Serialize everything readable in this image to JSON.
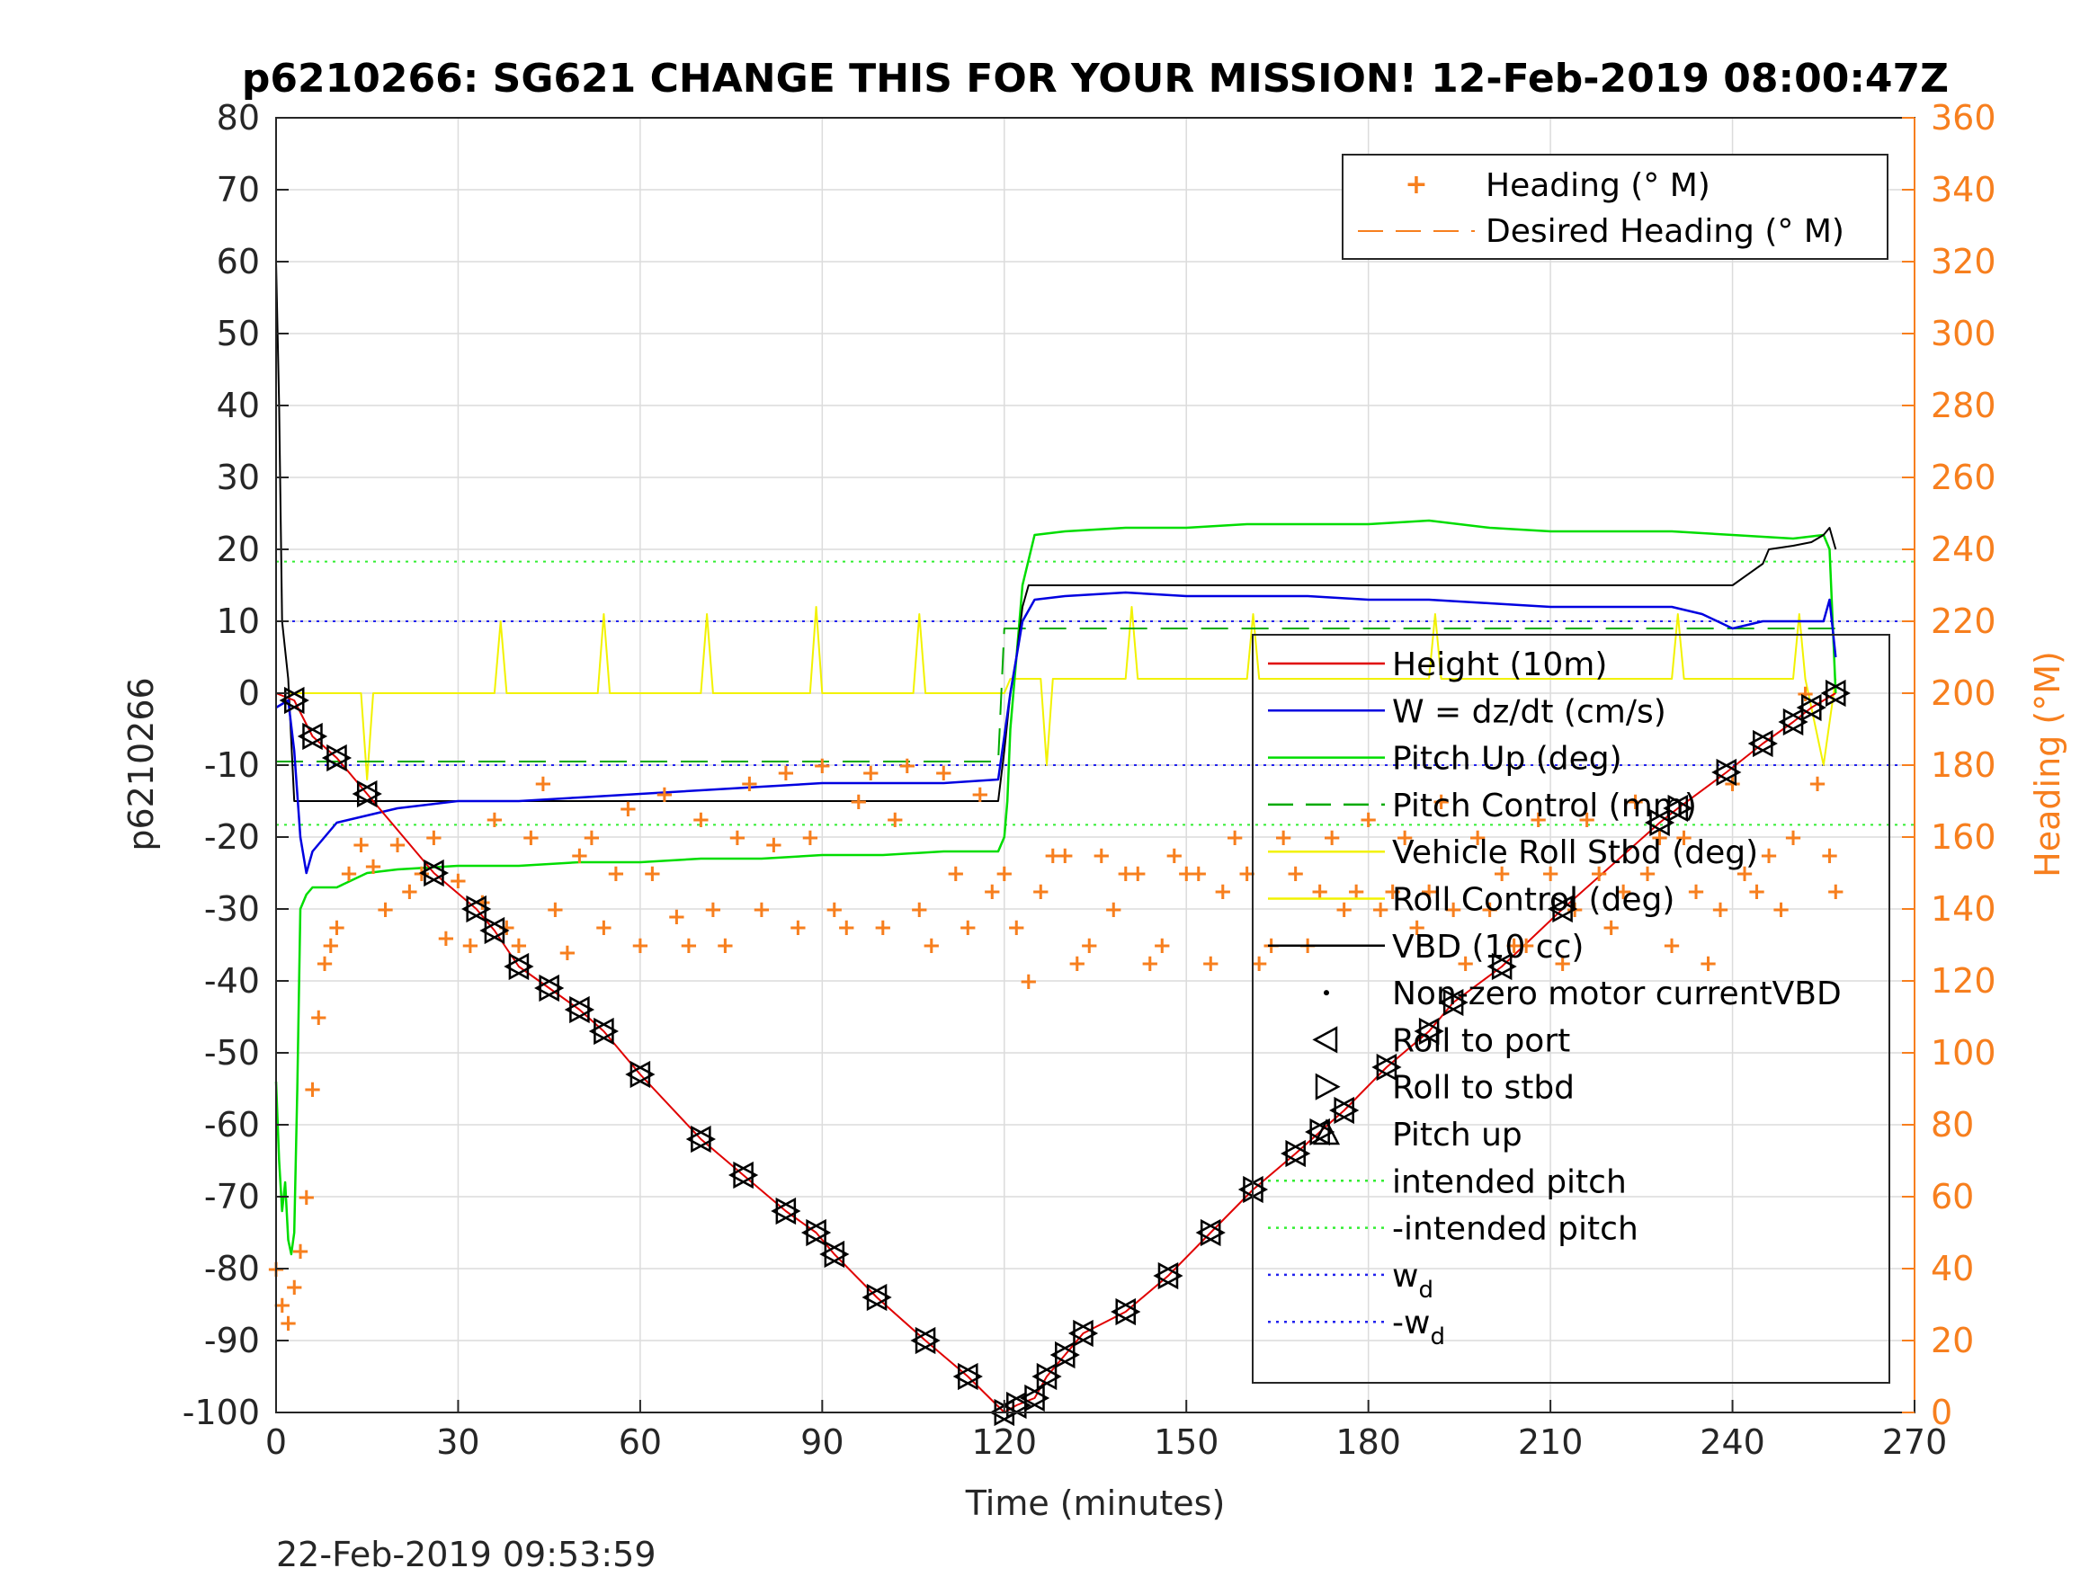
{
  "chart_data": {
    "type": "line",
    "title": "p6210266: SG621 CHANGE THIS FOR YOUR MISSION! 12-Feb-2019 08:00:47Z",
    "xlabel": "Time (minutes)",
    "ylabel_left": "p6210266",
    "ylabel_right": "Heading (°M)",
    "footer": "22-Feb-2019 09:53:59",
    "xlim": [
      0,
      270
    ],
    "ylim_left": [
      -100,
      80
    ],
    "ylim_right": [
      0,
      360
    ],
    "x_ticks": [
      0,
      30,
      60,
      90,
      120,
      150,
      180,
      210,
      240,
      270
    ],
    "y_ticks_left": [
      80,
      70,
      60,
      50,
      40,
      30,
      20,
      10,
      0,
      -10,
      -20,
      -30,
      -40,
      -50,
      -60,
      -70,
      -80,
      -90,
      -100
    ],
    "y_ticks_right": [
      360,
      340,
      320,
      300,
      280,
      260,
      240,
      220,
      200,
      180,
      160,
      140,
      120,
      100,
      80,
      60,
      40,
      20,
      0
    ],
    "grid": true,
    "colors": {
      "height": "#e00000",
      "w": "#0000e0",
      "pitch_up": "#00dd00",
      "pitch_control": "#00aa00",
      "roll": "#f2f200",
      "vbd": "#000000",
      "heading": "#f77f1e",
      "intended_pitch": "#33ee33",
      "wd": "#2222ee"
    },
    "legend_heading": {
      "placement": "top-right",
      "entries": [
        "Heading (° M)",
        "Desired Heading (° M)"
      ]
    },
    "legend_main": {
      "placement": "right",
      "entries": [
        {
          "label": "Height (10m)"
        },
        {
          "label": "W = dz/dt (cm/s)"
        },
        {
          "label": "Pitch Up (deg)"
        },
        {
          "label": "Pitch Control (mm)"
        },
        {
          "label": "Vehicle Roll Stbd (deg)"
        },
        {
          "label": "Roll Control (deg)"
        },
        {
          "label": "VBD (10 cc)"
        },
        {
          "label": "Non-zero motor currentVBD"
        },
        {
          "label": "Roll to port"
        },
        {
          "label": "Roll to stbd"
        },
        {
          "label": "Pitch up"
        },
        {
          "label": "intended pitch"
        },
        {
          "label": "-intended pitch"
        },
        {
          "label": "w",
          "sub": "d"
        },
        {
          "label": "-w",
          "sub": "d"
        }
      ]
    },
    "reference_lines": {
      "intended_pitch": 18.3,
      "neg_intended_pitch": -18.3,
      "wd": 10,
      "neg_wd": -10
    },
    "series": {
      "height": {
        "name": "Height (10m)",
        "x": [
          0,
          3,
          6,
          10,
          15,
          26,
          33,
          36,
          40,
          45,
          50,
          54,
          60,
          70,
          77,
          84,
          89,
          92,
          99,
          107,
          114,
          120,
          122,
          125,
          127,
          130,
          133,
          140,
          147,
          154,
          161,
          168,
          172,
          176,
          183,
          190,
          194,
          202,
          212,
          228,
          231,
          239,
          245,
          250,
          253,
          257
        ],
        "y": [
          0,
          -1,
          -6,
          -9,
          -14,
          -25,
          -30,
          -33,
          -38,
          -41,
          -44,
          -47,
          -53,
          -62,
          -67,
          -72,
          -75,
          -78,
          -84,
          -90,
          -95,
          -100,
          -99,
          -98,
          -95,
          -92,
          -89,
          -86,
          -81,
          -75,
          -69,
          -64,
          -61,
          -58,
          -52,
          -47,
          -43,
          -38,
          -30,
          -18,
          -16,
          -11,
          -7,
          -4,
          -2,
          0
        ]
      },
      "w": {
        "name": "W = dz/dt (cm/s)",
        "x": [
          0,
          2,
          3,
          4,
          5,
          6,
          8,
          10,
          15,
          20,
          30,
          40,
          50,
          60,
          70,
          80,
          90,
          100,
          110,
          119,
          120,
          121,
          122,
          123,
          125,
          130,
          140,
          150,
          160,
          170,
          180,
          190,
          200,
          210,
          220,
          230,
          235,
          240,
          245,
          250,
          255,
          256,
          257
        ],
        "y": [
          -2,
          -1,
          -8,
          -20,
          -25,
          -22,
          -20,
          -18,
          -17,
          -16,
          -15,
          -15,
          -14.5,
          -14,
          -13.5,
          -13,
          -12.5,
          -12.5,
          -12.5,
          -12,
          -6,
          0,
          5,
          10,
          13,
          13.5,
          14,
          13.5,
          13.5,
          13.5,
          13,
          13,
          12.5,
          12,
          12,
          12,
          11,
          9,
          10,
          10,
          10,
          13,
          5
        ]
      },
      "pitch_up": {
        "name": "Pitch Up (deg)",
        "x": [
          0,
          0.5,
          1,
          1.5,
          2,
          2.5,
          3,
          3.5,
          4,
          5,
          6,
          10,
          15,
          20,
          30,
          40,
          50,
          60,
          70,
          80,
          90,
          100,
          110,
          119,
          120,
          120.5,
          121,
          122,
          123,
          125,
          130,
          140,
          150,
          160,
          170,
          180,
          190,
          200,
          210,
          220,
          230,
          240,
          250,
          255,
          256,
          257
        ],
        "y": [
          -54,
          -65,
          -72,
          -68,
          -76,
          -78,
          -75,
          -55,
          -30,
          -28,
          -27,
          -27,
          -25,
          -24.5,
          -24,
          -24,
          -23.5,
          -23.5,
          -23,
          -23,
          -22.5,
          -22.5,
          -22,
          -22,
          -20,
          -15,
          -5,
          5,
          15,
          22,
          22.5,
          23,
          23,
          23.5,
          23.5,
          23.5,
          24,
          23,
          22.5,
          22.5,
          22.5,
          22,
          21.5,
          22,
          20,
          0
        ]
      },
      "pitch_control": {
        "name": "Pitch Control (mm)",
        "x": [
          0,
          119,
          120,
          257
        ],
        "y": [
          -9.5,
          -9.5,
          9,
          9
        ]
      },
      "roll": {
        "name": "Vehicle Roll Stbd (deg)",
        "x": [
          0,
          8,
          14,
          15,
          16,
          25,
          36,
          37,
          38,
          44,
          53,
          54,
          55,
          70,
          71,
          72,
          88,
          89,
          90,
          105,
          106,
          107,
          120,
          121,
          126,
          127,
          128,
          140,
          141,
          142,
          160,
          161,
          162,
          190,
          191,
          192,
          215,
          230,
          231,
          232,
          250,
          251,
          252,
          255,
          257
        ],
        "y": [
          0,
          0,
          0,
          -12,
          0,
          0,
          0,
          10,
          0,
          0,
          0,
          11,
          0,
          0,
          11,
          0,
          0,
          12,
          0,
          0,
          11,
          0,
          0,
          2,
          2,
          -10,
          2,
          2,
          12,
          2,
          2,
          11,
          2,
          2,
          11,
          2,
          2,
          2,
          11,
          2,
          2,
          11,
          2,
          -10,
          2
        ]
      },
      "vbd": {
        "name": "VBD (10 cc)",
        "x": [
          0,
          0.5,
          1,
          2,
          3,
          119,
          120,
          121,
          122,
          123,
          124,
          190,
          225,
          240,
          245,
          246,
          250,
          253,
          255,
          256,
          257
        ],
        "y": [
          60,
          40,
          10,
          2,
          -15,
          -15,
          -8,
          0,
          5,
          12,
          15,
          15,
          15,
          15,
          18,
          20,
          20.5,
          21,
          22,
          23,
          20
        ]
      },
      "heading": {
        "name": "Heading (° M)",
        "x": [
          0,
          1,
          2,
          3,
          4,
          5,
          6,
          7,
          8,
          9,
          10,
          12,
          14,
          16,
          18,
          20,
          22,
          24,
          26,
          28,
          30,
          32,
          34,
          36,
          38,
          40,
          42,
          44,
          46,
          48,
          50,
          52,
          54,
          56,
          58,
          60,
          62,
          64,
          66,
          68,
          70,
          72,
          74,
          76,
          78,
          80,
          82,
          84,
          86,
          88,
          90,
          92,
          94,
          96,
          98,
          100,
          102,
          104,
          106,
          108,
          110,
          112,
          114,
          116,
          118,
          120,
          122,
          124,
          126,
          128,
          130,
          132,
          134,
          136,
          138,
          140,
          142,
          144,
          146,
          148,
          150,
          152,
          154,
          156,
          158,
          160,
          162,
          164,
          166,
          168,
          170,
          172,
          174,
          176,
          178,
          180,
          182,
          184,
          186,
          188,
          190,
          192,
          194,
          196,
          198,
          200,
          202,
          204,
          206,
          208,
          210,
          212,
          214,
          216,
          218,
          220,
          222,
          224,
          226,
          228,
          230,
          232,
          234,
          236,
          238,
          240,
          242,
          244,
          246,
          248,
          250,
          252,
          254,
          256,
          257
        ],
        "y": [
          40,
          30,
          25,
          35,
          45,
          60,
          90,
          110,
          125,
          130,
          135,
          150,
          158,
          152,
          140,
          158,
          145,
          150,
          160,
          132,
          148,
          130,
          142,
          165,
          135,
          130,
          160,
          175,
          140,
          128,
          155,
          160,
          135,
          150,
          168,
          130,
          150,
          172,
          138,
          130,
          165,
          140,
          130,
          160,
          175,
          140,
          158,
          178,
          135,
          160,
          180,
          140,
          135,
          170,
          178,
          135,
          165,
          180,
          140,
          130,
          178,
          150,
          135,
          172,
          145,
          150,
          135,
          120,
          145,
          155,
          155,
          125,
          130,
          155,
          140,
          150,
          150,
          125,
          130,
          155,
          150,
          150,
          125,
          145,
          160,
          150,
          125,
          130,
          160,
          150,
          130,
          145,
          160,
          140,
          145,
          165,
          140,
          145,
          160,
          135,
          145,
          170,
          140,
          125,
          160,
          140,
          150,
          130,
          130,
          165,
          150,
          125,
          140,
          165,
          150,
          135,
          145,
          170,
          150,
          160,
          130,
          160,
          145,
          125,
          140,
          175,
          150,
          145,
          155,
          140,
          160,
          200,
          175,
          155,
          145
        ]
      }
    }
  }
}
